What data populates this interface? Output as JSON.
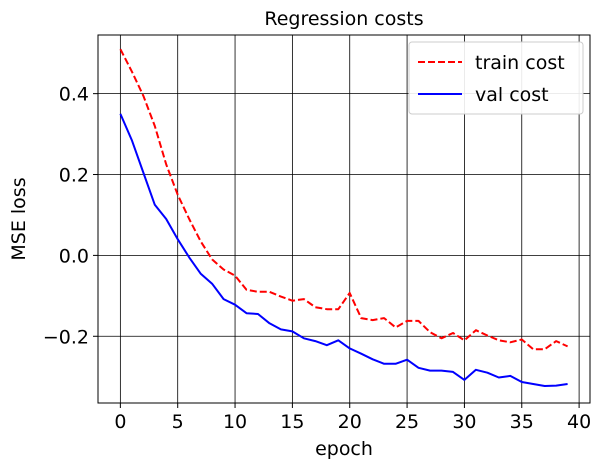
{
  "chart_data": {
    "type": "line",
    "title": "Regression costs",
    "xlabel": "epoch",
    "ylabel": "MSE loss",
    "xlim": [
      -1.95,
      40.95
    ],
    "ylim": [
      -0.365,
      0.545
    ],
    "xticks": [
      0,
      5,
      10,
      15,
      20,
      25,
      30,
      35,
      40
    ],
    "yticks": [
      -0.2,
      0.0,
      0.2,
      0.4
    ],
    "ytick_labels": [
      "−0.2",
      "0.0",
      "0.2",
      "0.4"
    ],
    "grid": true,
    "legend_position": "top-right",
    "series": [
      {
        "name": "train cost",
        "style": "dashed",
        "color": "#ff0000",
        "x": [
          0,
          1,
          2,
          3,
          4,
          5,
          6,
          7,
          8,
          9,
          10,
          11,
          12,
          13,
          14,
          15,
          16,
          17,
          18,
          19,
          20,
          21,
          22,
          23,
          24,
          25,
          26,
          27,
          28,
          29,
          30,
          31,
          32,
          33,
          34,
          35,
          36,
          37,
          38,
          39
        ],
        "values": [
          0.51,
          0.455,
          0.395,
          0.32,
          0.225,
          0.15,
          0.09,
          0.035,
          -0.01,
          -0.035,
          -0.05,
          -0.085,
          -0.09,
          -0.09,
          -0.102,
          -0.112,
          -0.108,
          -0.128,
          -0.133,
          -0.133,
          -0.093,
          -0.155,
          -0.16,
          -0.155,
          -0.178,
          -0.162,
          -0.162,
          -0.19,
          -0.205,
          -0.192,
          -0.21,
          -0.185,
          -0.198,
          -0.21,
          -0.215,
          -0.208,
          -0.232,
          -0.232,
          -0.212,
          -0.225
        ]
      },
      {
        "name": "val cost",
        "style": "solid",
        "color": "#0000ff",
        "x": [
          0,
          1,
          2,
          3,
          4,
          5,
          6,
          7,
          8,
          9,
          10,
          11,
          12,
          13,
          14,
          15,
          16,
          17,
          18,
          19,
          20,
          21,
          22,
          23,
          24,
          25,
          26,
          27,
          28,
          29,
          30,
          31,
          32,
          33,
          34,
          35,
          36,
          37,
          38,
          39
        ],
        "values": [
          0.35,
          0.285,
          0.205,
          0.125,
          0.09,
          0.04,
          -0.005,
          -0.045,
          -0.07,
          -0.108,
          -0.122,
          -0.143,
          -0.145,
          -0.168,
          -0.183,
          -0.188,
          -0.205,
          -0.212,
          -0.222,
          -0.21,
          -0.23,
          -0.243,
          -0.257,
          -0.268,
          -0.268,
          -0.258,
          -0.278,
          -0.285,
          -0.285,
          -0.288,
          -0.308,
          -0.283,
          -0.29,
          -0.302,
          -0.298,
          -0.313,
          -0.318,
          -0.323,
          -0.322,
          -0.318
        ]
      }
    ]
  }
}
